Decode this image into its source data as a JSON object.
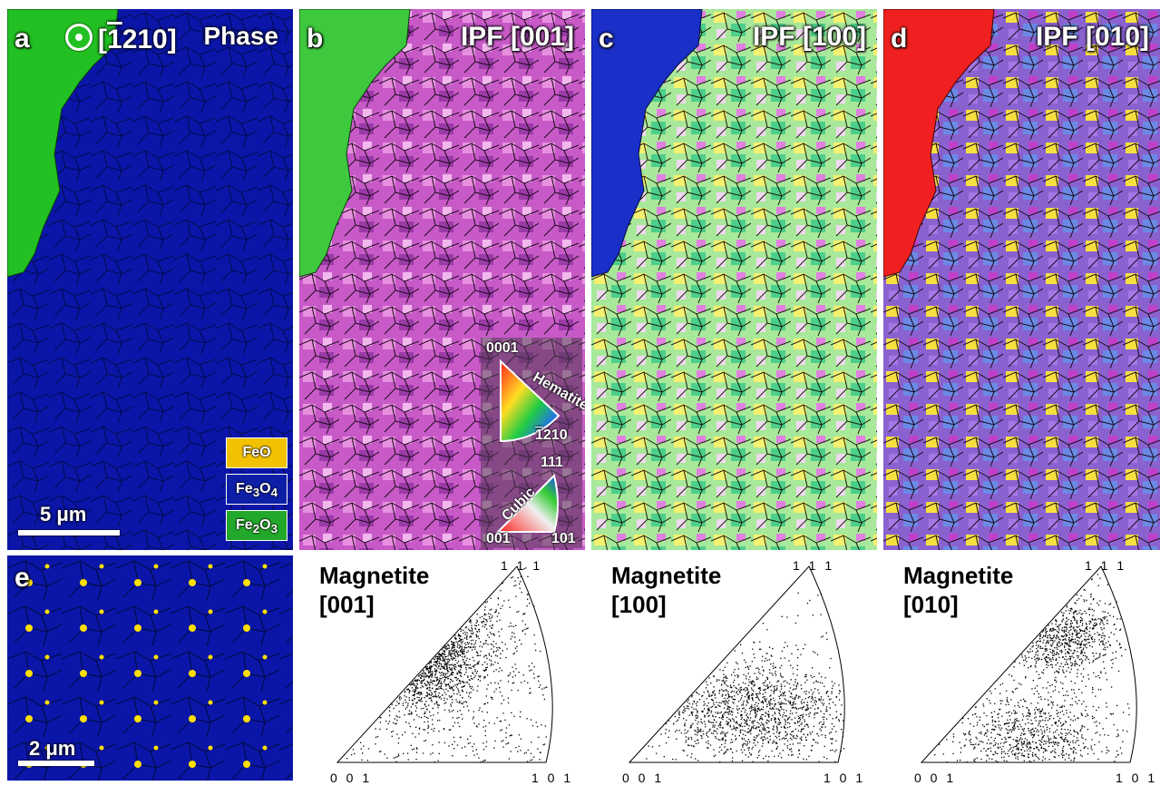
{
  "panel_a": {
    "letter": "a",
    "direction": "[1̅210]",
    "direction_prefix": "[",
    "direction_bar": "1",
    "direction_rest": "210]",
    "title": "Phase",
    "scale": "5 μm",
    "legend": [
      {
        "label_main": "FeO",
        "label_sub": "",
        "label_after": "",
        "color": "#f2c200"
      },
      {
        "label_main": "Fe",
        "label_sub": "3",
        "label_after": "O",
        "label_sub2": "4",
        "color": "#0d1fa6"
      },
      {
        "label_main": "Fe",
        "label_sub": "2",
        "label_after": "O",
        "label_sub2": "3",
        "color": "#22a82a"
      }
    ],
    "colors": {
      "background": "#0b16a8",
      "hematite": "#22c022"
    }
  },
  "panel_b": {
    "letter": "b",
    "title": "IPF [001]",
    "key_hexagonal": {
      "top": "0001",
      "side": "Hematite",
      "corner": "1̅210"
    },
    "key_cubic": {
      "top": "111",
      "side": "Cubic",
      "left": "001",
      "right": "101"
    }
  },
  "panel_c": {
    "letter": "c",
    "title": "IPF [100]"
  },
  "panel_d": {
    "letter": "d",
    "title": "IPF [010]"
  },
  "panel_e": {
    "letter": "e",
    "scale": "2 μm"
  },
  "pole_figures": [
    {
      "title_line1": "Magnetite",
      "title_line2": "[001]",
      "top": "1 1 1",
      "left": "0 0 1",
      "right": "1 0 1"
    },
    {
      "title_line1": "Magnetite",
      "title_line2": "[100]",
      "top": "1 1 1",
      "left": "0 0 1",
      "right": "1 0 1"
    },
    {
      "title_line1": "Magnetite",
      "title_line2": "[010]",
      "top": "1 1 1",
      "left": "0 0 1",
      "right": "1 0 1"
    }
  ]
}
